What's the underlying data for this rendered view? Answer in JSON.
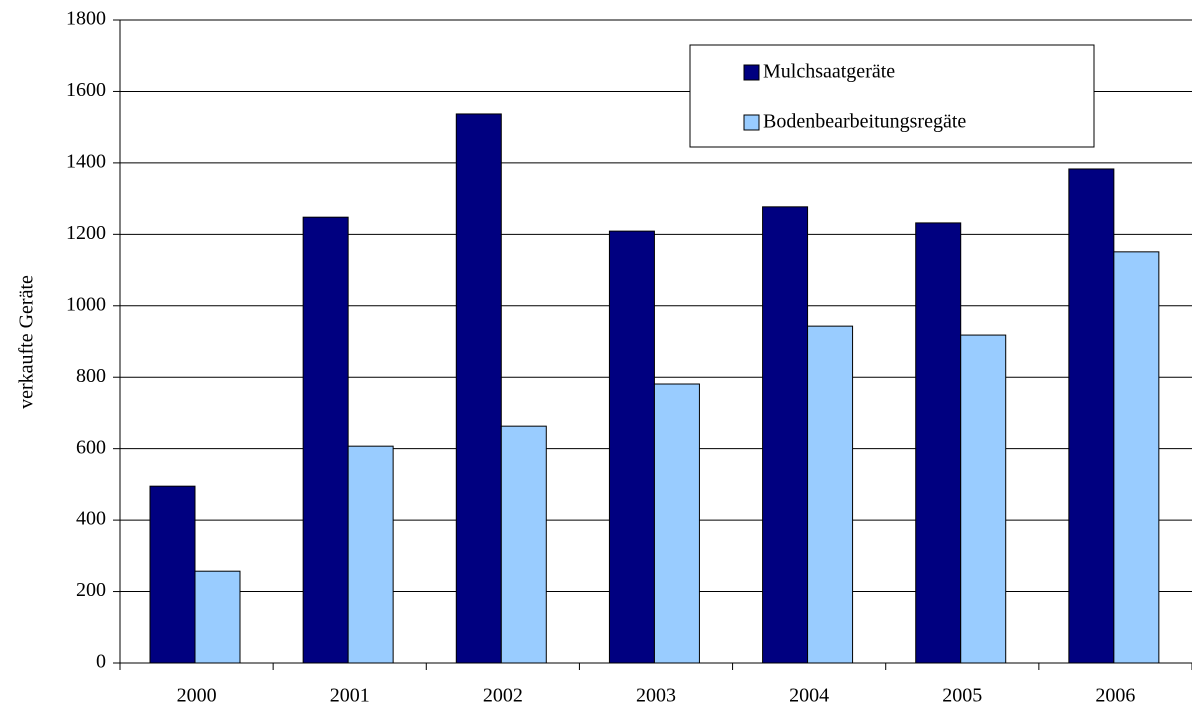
{
  "chart_data": {
    "type": "bar",
    "y_label": "verkaufte Geräte",
    "categories": [
      "2000",
      "2001",
      "2002",
      "2003",
      "2004",
      "2005",
      "2006"
    ],
    "series": [
      {
        "name": "Mulchsaatgeräte",
        "color": "#000080",
        "values": [
          495,
          1248,
          1537,
          1209,
          1277,
          1232,
          1383
        ]
      },
      {
        "name": "Bodenbearbeitungsregäte",
        "color": "#99ccff",
        "values": [
          257,
          607,
          663,
          781,
          943,
          918,
          1151
        ]
      }
    ],
    "ylim": [
      0,
      1800
    ],
    "yticks": [
      0,
      200,
      400,
      600,
      800,
      1000,
      1200,
      1400,
      1600,
      1800
    ],
    "grid": true,
    "legend": "top-right"
  }
}
